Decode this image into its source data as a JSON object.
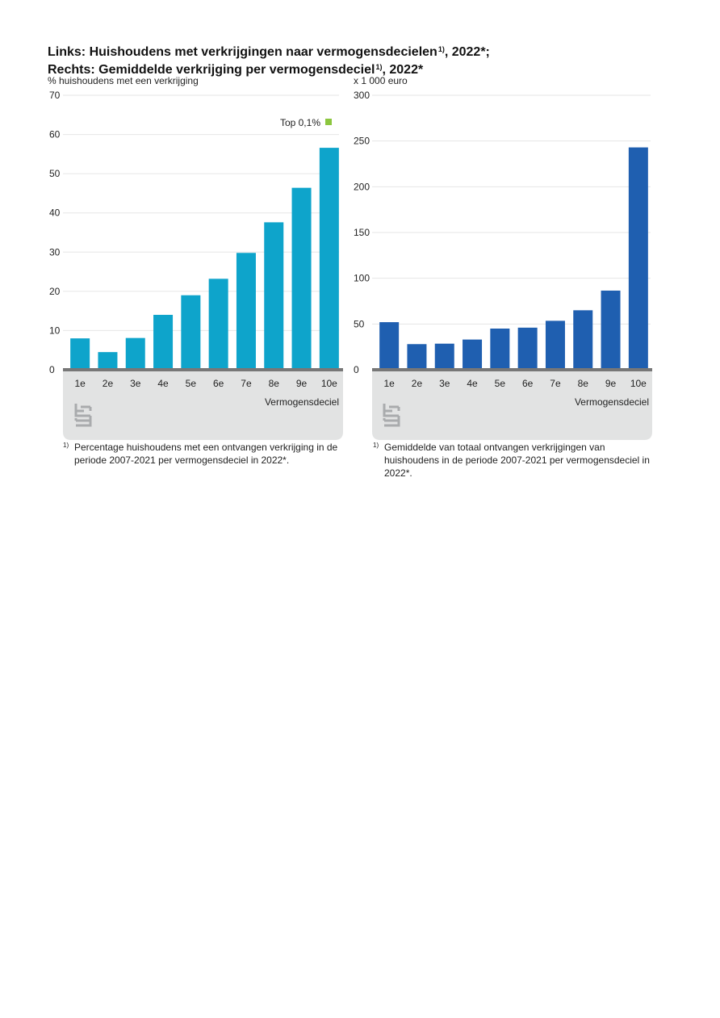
{
  "title": {
    "line1": "Links: Huishoudens met verkrijgingen naar vermogensdecielen",
    "line1_sup": "1)",
    "line1_end": ", 2022*;",
    "line2": "Rechts: Gemiddelde verkrijging per vermogensdeciel",
    "line2_sup": "1)",
    "line2_end": ", 2022*"
  },
  "colors": {
    "left_bar": "#0ea4cb",
    "right_bar": "#1f5fb0",
    "legend_marker": "#8cc63f",
    "panel_bg": "#e2e3e3",
    "axis": "#777777",
    "logo": "#a9abad"
  },
  "chart_data": [
    {
      "type": "bar",
      "title": "Huishoudens met verkrijgingen naar vermogensdecielen, 2022*",
      "ylabel": "% huishoudens met een verkrijging",
      "xlabel": "Vermogensdeciel",
      "categories": [
        "1e",
        "2e",
        "3e",
        "4e",
        "5e",
        "6e",
        "7e",
        "8e",
        "9e",
        "10e"
      ],
      "values": [
        8,
        4.5,
        8.1,
        14,
        19,
        23.2,
        29.8,
        37.6,
        46.4,
        56.6
      ],
      "ylim": [
        0,
        70
      ],
      "yticks": [
        "0",
        "10",
        "20",
        "30",
        "40",
        "50",
        "60",
        "70"
      ],
      "legend": {
        "label": "Top 0,1%",
        "placement": "top-right"
      },
      "footnote_mark": "1)",
      "footnote": "Percentage huishoudens met een ontvangen verkrijging in de periode 2007-2021 per vermogensdeciel in 2022*."
    },
    {
      "type": "bar",
      "title": "Gemiddelde verkrijging per vermogensdeciel, 2022*",
      "ylabel": "x 1 000 euro",
      "xlabel": "Vermogensdeciel",
      "categories": [
        "1e",
        "2e",
        "3e",
        "4e",
        "5e",
        "6e",
        "7e",
        "8e",
        "9e",
        "10e"
      ],
      "values": [
        52,
        28,
        28.5,
        33,
        45,
        46,
        53.5,
        65,
        86.5,
        243
      ],
      "ylim": [
        0,
        300
      ],
      "yticks": [
        "0",
        "50",
        "100",
        "150",
        "200",
        "250",
        "300"
      ],
      "footnote_mark": "1)",
      "footnote": "Gemiddelde van totaal ontvangen verkrijgingen van huishoudens in de periode 2007-2021 per vermogensdeciel in 2022*."
    }
  ]
}
